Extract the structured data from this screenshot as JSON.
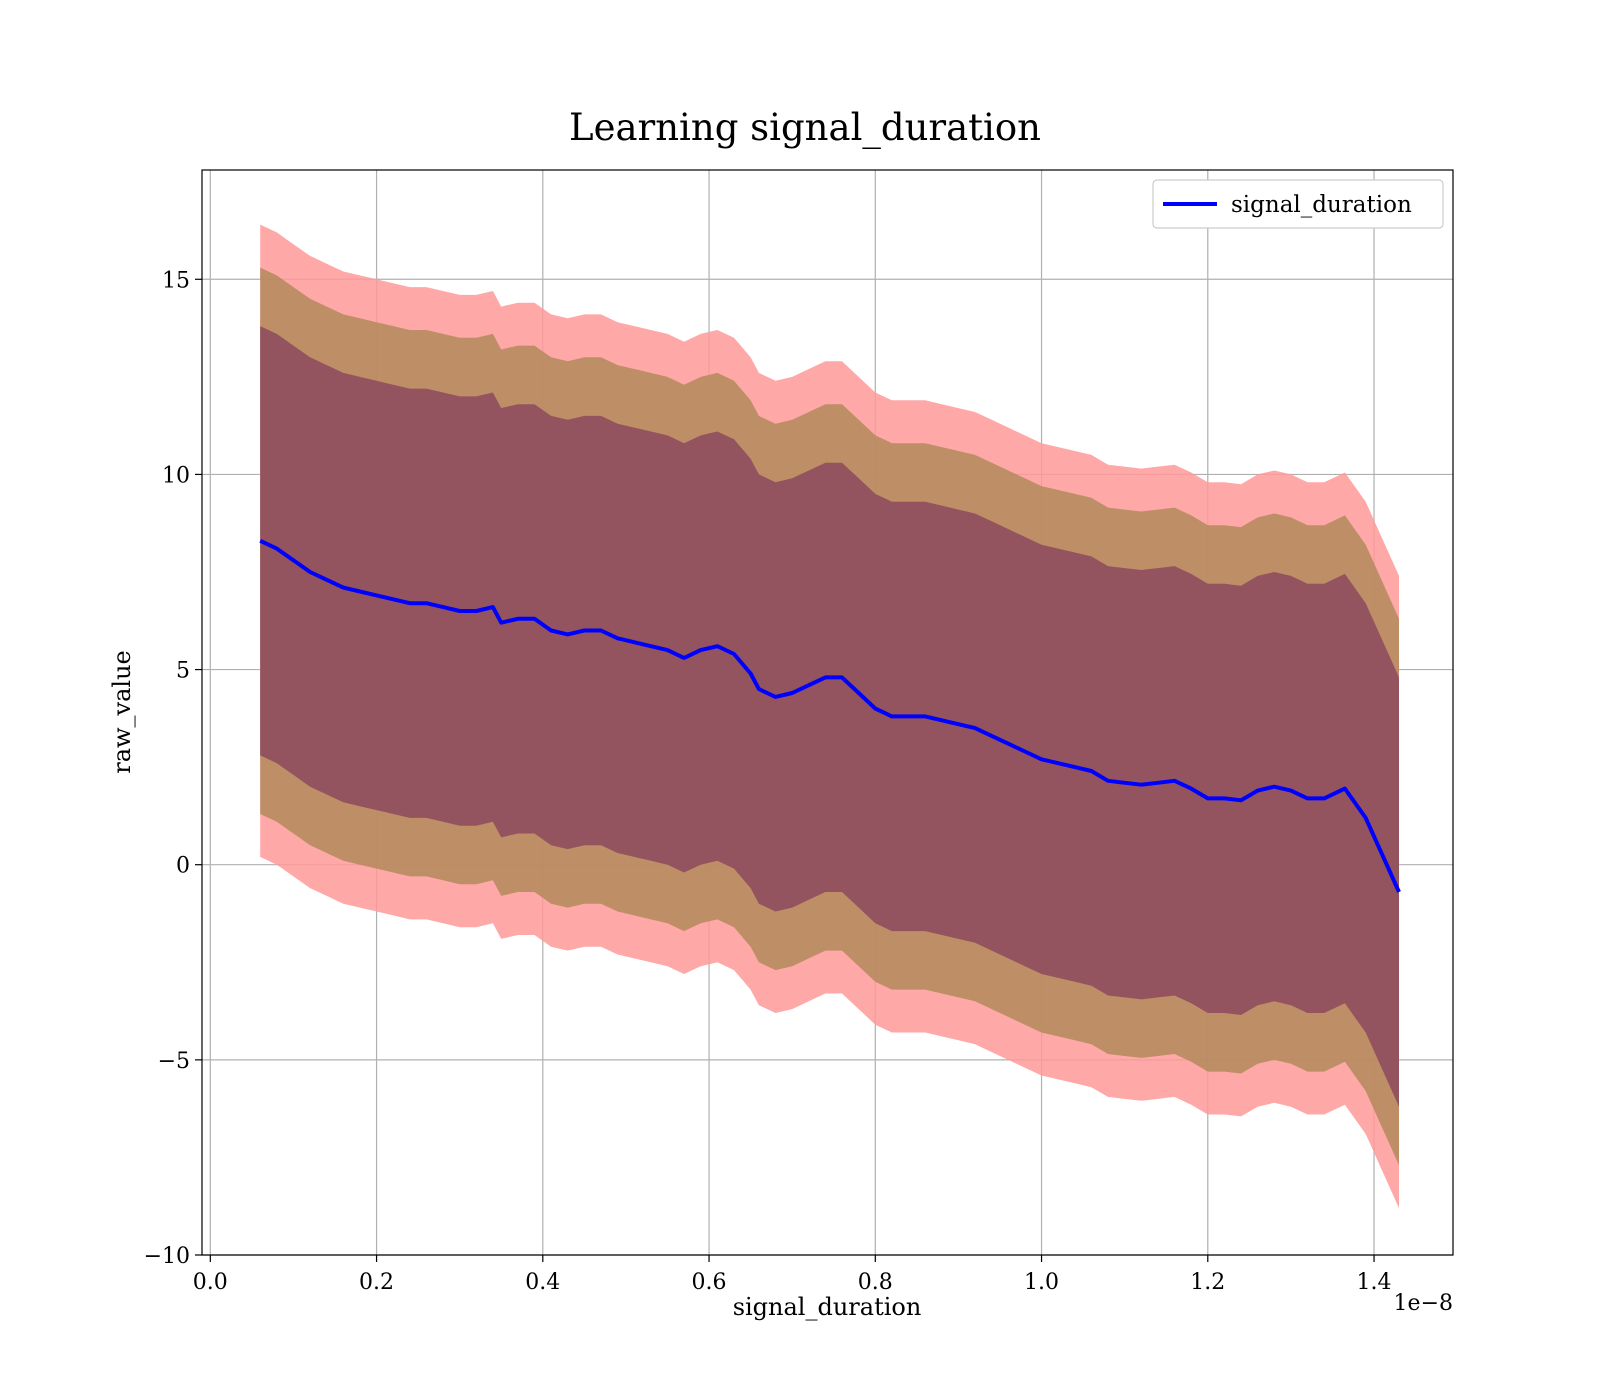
{
  "chart_data": {
    "type": "line",
    "title": "Learning signal_duration",
    "xlabel": "signal_duration",
    "ylabel": "raw_value",
    "x_offset_label": "1e−8",
    "xlim": [
      -0.01,
      1.495
    ],
    "ylim": [
      -10,
      17.8
    ],
    "xticks": [
      0.0,
      0.2,
      0.4,
      0.6,
      0.8,
      1.0,
      1.2,
      1.4
    ],
    "xtick_labels": [
      "0.0",
      "0.2",
      "0.4",
      "0.6",
      "0.8",
      "1.0",
      "1.2",
      "1.4"
    ],
    "yticks": [
      -10,
      -5,
      0,
      5,
      10,
      15
    ],
    "ytick_labels": [
      "−10",
      "−5",
      "0",
      "5",
      "10",
      "15"
    ],
    "grid": true,
    "legend": {
      "position": "top-right",
      "entries": [
        "signal_duration"
      ]
    },
    "colors": {
      "line": "#0000ff",
      "band_outer": "#ff9999",
      "band_middle": "#b38a5a",
      "band_inner": "#8c4a5e"
    },
    "x": [
      0.06,
      0.08,
      0.1,
      0.12,
      0.14,
      0.16,
      0.18,
      0.2,
      0.22,
      0.24,
      0.26,
      0.28,
      0.3,
      0.32,
      0.34,
      0.35,
      0.37,
      0.39,
      0.41,
      0.43,
      0.45,
      0.47,
      0.49,
      0.51,
      0.53,
      0.55,
      0.57,
      0.59,
      0.61,
      0.63,
      0.65,
      0.66,
      0.68,
      0.7,
      0.72,
      0.74,
      0.76,
      0.78,
      0.8,
      0.82,
      0.84,
      0.86,
      0.88,
      0.9,
      0.92,
      0.94,
      0.96,
      0.98,
      1.0,
      1.02,
      1.04,
      1.06,
      1.08,
      1.1,
      1.12,
      1.14,
      1.16,
      1.18,
      1.2,
      1.22,
      1.24,
      1.26,
      1.28,
      1.3,
      1.32,
      1.34,
      1.365,
      1.39,
      1.43
    ],
    "series": [
      {
        "name": "signal_duration",
        "values": [
          8.3,
          8.1,
          7.8,
          7.5,
          7.3,
          7.1,
          7.0,
          6.9,
          6.8,
          6.7,
          6.7,
          6.6,
          6.5,
          6.5,
          6.6,
          6.2,
          6.3,
          6.3,
          6.0,
          5.9,
          6.0,
          6.0,
          5.8,
          5.7,
          5.6,
          5.5,
          5.3,
          5.5,
          5.6,
          5.4,
          4.9,
          4.5,
          4.3,
          4.4,
          4.6,
          4.8,
          4.8,
          4.4,
          4.0,
          3.8,
          3.8,
          3.8,
          3.7,
          3.6,
          3.5,
          3.3,
          3.1,
          2.9,
          2.7,
          2.6,
          2.5,
          2.4,
          2.15,
          2.1,
          2.05,
          2.1,
          2.15,
          1.95,
          1.7,
          1.7,
          1.65,
          1.9,
          2.0,
          1.9,
          1.7,
          1.7,
          1.95,
          1.2,
          -0.7
        ],
        "bands": [
          {
            "level": "outer",
            "half_width": 8.1
          },
          {
            "level": "middle",
            "half_width": 7.0
          },
          {
            "level": "inner",
            "half_width": 5.5
          }
        ]
      }
    ]
  }
}
